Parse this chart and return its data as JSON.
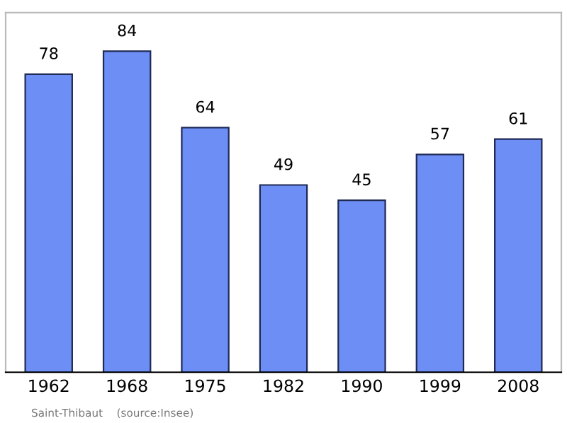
{
  "chart_data": {
    "type": "bar",
    "categories": [
      "1962",
      "1968",
      "1975",
      "1982",
      "1990",
      "1999",
      "2008"
    ],
    "values": [
      78,
      84,
      64,
      49,
      45,
      57,
      61
    ],
    "color": "#6d8ff5",
    "data_labels": true,
    "grid": false,
    "tick_labels": "x",
    "annotations": [
      "Saint-Thibaut    (source:Insee)"
    ]
  }
}
